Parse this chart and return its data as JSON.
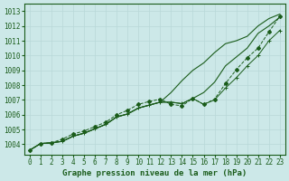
{
  "title": "Graphe pression niveau de la mer (hPa)",
  "x_labels": [
    "0",
    "1",
    "2",
    "3",
    "4",
    "5",
    "6",
    "7",
    "8",
    "9",
    "10",
    "11",
    "12",
    "13",
    "14",
    "15",
    "16",
    "17",
    "18",
    "19",
    "20",
    "21",
    "22",
    "23"
  ],
  "ylim": [
    1003.3,
    1013.5
  ],
  "xlim": [
    -0.5,
    23.5
  ],
  "yticks": [
    1004,
    1005,
    1006,
    1007,
    1008,
    1009,
    1010,
    1011,
    1012,
    1013
  ],
  "bg_color": "#cce8e8",
  "grid_color": "#b8d8d8",
  "line_color": "#1a5c1a",
  "line_straight": [
    1003.6,
    1004.05,
    1004.1,
    1004.2,
    1004.55,
    1004.75,
    1005.05,
    1005.35,
    1005.85,
    1006.05,
    1006.45,
    1006.65,
    1006.85,
    1006.85,
    1006.75,
    1007.1,
    1007.5,
    1008.2,
    1009.3,
    1009.9,
    1010.5,
    1011.5,
    1012.0,
    1012.6
  ],
  "line_upper": [
    1003.6,
    1004.05,
    1004.1,
    1004.2,
    1004.55,
    1004.75,
    1005.05,
    1005.35,
    1005.85,
    1006.05,
    1006.45,
    1006.65,
    1006.85,
    1007.5,
    1008.3,
    1009.0,
    1009.5,
    1010.2,
    1010.8,
    1011.0,
    1011.3,
    1012.0,
    1012.5,
    1012.8
  ],
  "line_diamond": [
    1003.6,
    1004.05,
    1004.1,
    1004.35,
    1004.7,
    1004.9,
    1005.2,
    1005.5,
    1006.0,
    1006.3,
    1006.7,
    1006.9,
    1007.05,
    1006.7,
    1006.6,
    1007.1,
    1006.7,
    1007.05,
    1008.1,
    1009.05,
    1009.85,
    1010.5,
    1011.6,
    1012.65
  ],
  "line_cross": [
    1003.6,
    1004.05,
    1004.1,
    1004.2,
    1004.55,
    1004.75,
    1005.05,
    1005.35,
    1005.85,
    1006.05,
    1006.45,
    1006.65,
    1006.85,
    1006.85,
    1006.75,
    1007.1,
    1006.7,
    1007.0,
    1007.8,
    1008.5,
    1009.3,
    1010.0,
    1011.0,
    1011.7
  ],
  "font_color": "#1a5c1a",
  "marker_size": 2.0,
  "tick_fontsize": 5.5,
  "label_fontsize": 6.5
}
